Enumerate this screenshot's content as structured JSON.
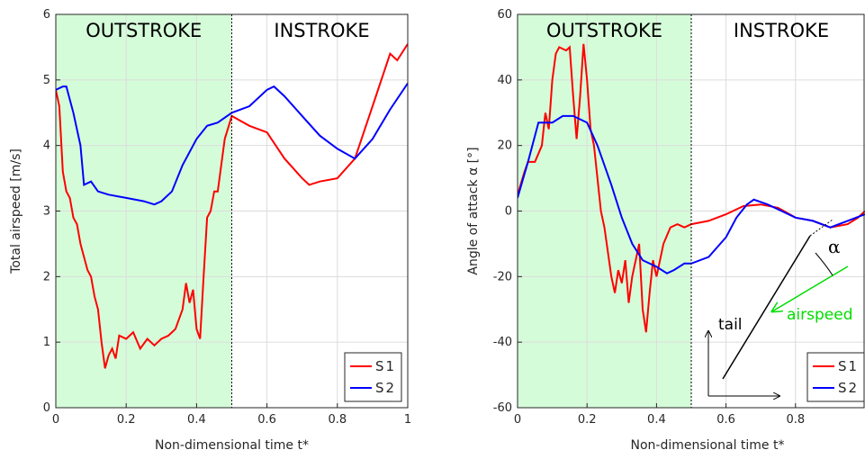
{
  "chart_data": [
    {
      "type": "line",
      "ylabel": "Total airspeed [m/s]",
      "xlabel": "Non-dimensional time t*",
      "xlim": [
        0,
        1
      ],
      "xticks": [
        0,
        0.2,
        0.4,
        0.6,
        0.8,
        1
      ],
      "ylim": [
        0,
        6
      ],
      "yticks": [
        0,
        1,
        2,
        3,
        4,
        5,
        6
      ],
      "grid": true,
      "shaded_range": [
        0,
        0.5
      ],
      "shade_color": "#d5fcd9",
      "phase_labels": [
        "OUTSTROKE",
        "INSTROKE"
      ],
      "legend": "lower right",
      "series": [
        {
          "name": "S1",
          "color": "#ff0000",
          "x": [
            0,
            0.01,
            0.02,
            0.03,
            0.04,
            0.05,
            0.06,
            0.07,
            0.08,
            0.09,
            0.1,
            0.11,
            0.12,
            0.13,
            0.14,
            0.15,
            0.16,
            0.17,
            0.18,
            0.2,
            0.22,
            0.24,
            0.26,
            0.28,
            0.3,
            0.32,
            0.34,
            0.36,
            0.37,
            0.38,
            0.39,
            0.4,
            0.41,
            0.42,
            0.43,
            0.44,
            0.45,
            0.46,
            0.47,
            0.48,
            0.5,
            0.55,
            0.6,
            0.65,
            0.7,
            0.72,
            0.75,
            0.8,
            0.85,
            0.9,
            0.95,
            0.97,
            1
          ],
          "values": [
            4.85,
            4.6,
            3.6,
            3.3,
            3.2,
            2.9,
            2.8,
            2.5,
            2.3,
            2.1,
            2.0,
            1.7,
            1.5,
            1.0,
            0.6,
            0.8,
            0.9,
            0.75,
            1.1,
            1.05,
            1.15,
            0.9,
            1.05,
            0.95,
            1.05,
            1.1,
            1.2,
            1.5,
            1.9,
            1.6,
            1.8,
            1.2,
            1.05,
            2.0,
            2.9,
            3.0,
            3.3,
            3.3,
            3.7,
            4.1,
            4.45,
            4.3,
            4.2,
            3.8,
            3.5,
            3.4,
            3.45,
            3.5,
            3.8,
            4.6,
            5.4,
            5.3,
            5.55
          ]
        },
        {
          "name": "S2",
          "color": "#0000ff",
          "x": [
            0,
            0.02,
            0.03,
            0.05,
            0.07,
            0.08,
            0.1,
            0.12,
            0.15,
            0.2,
            0.25,
            0.28,
            0.3,
            0.33,
            0.36,
            0.4,
            0.43,
            0.46,
            0.5,
            0.55,
            0.6,
            0.62,
            0.65,
            0.7,
            0.75,
            0.8,
            0.85,
            0.9,
            0.95,
            1
          ],
          "values": [
            4.85,
            4.9,
            4.9,
            4.5,
            4.0,
            3.4,
            3.45,
            3.3,
            3.25,
            3.2,
            3.15,
            3.1,
            3.15,
            3.3,
            3.7,
            4.1,
            4.3,
            4.35,
            4.5,
            4.6,
            4.85,
            4.9,
            4.75,
            4.45,
            4.15,
            3.95,
            3.8,
            4.1,
            4.55,
            4.95
          ]
        }
      ]
    },
    {
      "type": "line",
      "ylabel": "Angle of attack α [°]",
      "xlabel": "Non-dimensional time t*",
      "xlim": [
        0,
        1
      ],
      "xticks": [
        0,
        0.2,
        0.4,
        0.6,
        0.8
      ],
      "ylim": [
        -60,
        60
      ],
      "yticks": [
        -60,
        -40,
        -20,
        0,
        20,
        40,
        60
      ],
      "grid": true,
      "shaded_range": [
        0,
        0.5
      ],
      "shade_color": "#d5fcd9",
      "phase_labels": [
        "OUTSTROKE",
        "INSTROKE"
      ],
      "legend": "lower right",
      "annotations": [
        "tail",
        "airspeed",
        "α"
      ],
      "series": [
        {
          "name": "S1",
          "color": "#ff0000",
          "x": [
            0,
            0.02,
            0.03,
            0.05,
            0.07,
            0.08,
            0.09,
            0.1,
            0.11,
            0.12,
            0.14,
            0.15,
            0.16,
            0.17,
            0.18,
            0.19,
            0.2,
            0.21,
            0.22,
            0.24,
            0.25,
            0.27,
            0.28,
            0.29,
            0.3,
            0.31,
            0.32,
            0.33,
            0.35,
            0.36,
            0.37,
            0.38,
            0.39,
            0.4,
            0.42,
            0.44,
            0.46,
            0.48,
            0.5,
            0.55,
            0.6,
            0.65,
            0.7,
            0.75,
            0.8,
            0.85,
            0.9,
            0.95,
            0.98,
            1
          ],
          "values": [
            5,
            12,
            15,
            15,
            20,
            30,
            25,
            40,
            48,
            50,
            49,
            50,
            35,
            22,
            35,
            51,
            40,
            25,
            20,
            0,
            -5,
            -20,
            -25,
            -18,
            -22,
            -15,
            -28,
            -20,
            -10,
            -30,
            -37,
            -25,
            -15,
            -20,
            -10,
            -5,
            -4,
            -5,
            -4,
            -3,
            -1,
            1.5,
            2,
            1,
            -2,
            -3,
            -5,
            -4,
            -2,
            0
          ]
        },
        {
          "name": "S2",
          "color": "#0000ff",
          "x": [
            0,
            0.03,
            0.06,
            0.1,
            0.13,
            0.16,
            0.2,
            0.23,
            0.27,
            0.3,
            0.33,
            0.36,
            0.4,
            0.43,
            0.45,
            0.48,
            0.5,
            0.55,
            0.6,
            0.63,
            0.66,
            0.68,
            0.72,
            0.76,
            0.8,
            0.85,
            0.9,
            0.95,
            1
          ],
          "values": [
            4,
            15,
            27,
            27,
            29,
            29,
            27,
            20,
            8,
            -2,
            -10,
            -15,
            -17,
            -19,
            -18,
            -16,
            -16,
            -14,
            -8,
            -2,
            2,
            3.5,
            2,
            0,
            -2,
            -3,
            -5,
            -3,
            -1
          ]
        }
      ]
    }
  ]
}
